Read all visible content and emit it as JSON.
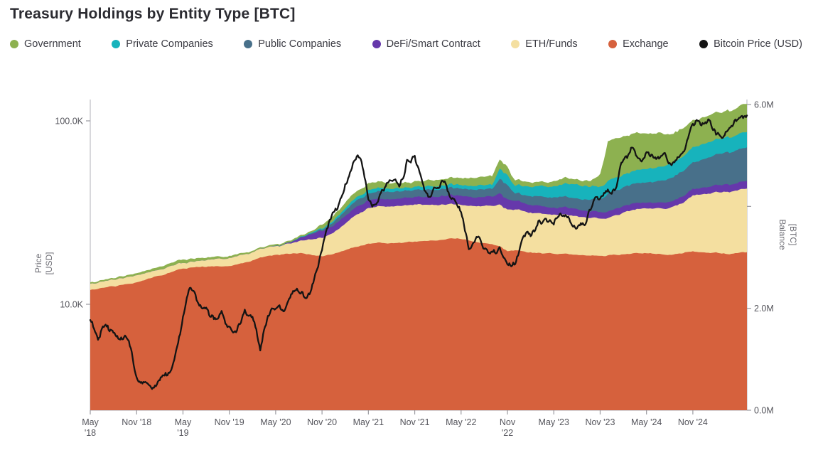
{
  "header": {
    "title": "Treasury Holdings by Entity Type [BTC]"
  },
  "legend": [
    {
      "label": "Government",
      "color": "#8db150",
      "icon": "dot"
    },
    {
      "label": "Private Companies",
      "color": "#17b3bc",
      "icon": "dot"
    },
    {
      "label": "Public Companies",
      "color": "#48708a",
      "icon": "dot"
    },
    {
      "label": "DeFi/Smart Contract",
      "color": "#6638ab",
      "icon": "dot"
    },
    {
      "label": "ETH/Funds",
      "color": "#f4dfa0",
      "icon": "dot"
    },
    {
      "label": "Exchange",
      "color": "#d6613d",
      "icon": "dot"
    },
    {
      "label": "Bitcoin Price (USD)",
      "color": "#141414",
      "icon": "dot"
    }
  ],
  "chart_data": {
    "type": "area",
    "subtype": "stacked-area-with-price-line",
    "x_start_month": "2018-05",
    "x_end_month": "2025-06",
    "x_tick_months": [
      0,
      6,
      12,
      18,
      24,
      30,
      36,
      42,
      48,
      54,
      60,
      66,
      72,
      78
    ],
    "x_tick_labels": [
      [
        "May",
        "'18"
      ],
      [
        "Nov '18"
      ],
      [
        "May",
        "'19"
      ],
      [
        "Nov '19"
      ],
      [
        "May '20"
      ],
      [
        "Nov '20"
      ],
      [
        "May '21"
      ],
      [
        "Nov '21"
      ],
      [
        "May '22"
      ],
      [
        "Nov",
        "'22"
      ],
      [
        "May '23"
      ],
      [
        "Nov '23"
      ],
      [
        "May '24"
      ],
      [
        "Nov '24"
      ]
    ],
    "left_axis": {
      "label_lines": [
        "Price",
        "[USD]"
      ],
      "scale": "log",
      "unit": "USD",
      "ticks": [
        {
          "value": 10000,
          "label": "10.0K"
        },
        {
          "value": 100000,
          "label": "100.0K"
        }
      ],
      "range": [
        2600,
        133000
      ]
    },
    "right_axis": {
      "label_lines": [
        "Balance",
        "[BTC]"
      ],
      "scale": "linear",
      "unit": "M BTC",
      "ticks": [
        {
          "value": 0,
          "label": "0.0M"
        },
        {
          "value": 2,
          "label": "2.0M"
        },
        {
          "value": 4,
          "label": ""
        },
        {
          "value": 6,
          "label": "6.0M"
        }
      ],
      "range": [
        0,
        6.13
      ]
    },
    "grid": false,
    "legend_position": "top",
    "series_unit": "M BTC",
    "series": [
      {
        "name": "Exchange",
        "color": "#d6613d",
        "values": [
          2.36,
          2.38,
          2.41,
          2.43,
          2.46,
          2.48,
          2.51,
          2.55,
          2.6,
          2.64,
          2.69,
          2.74,
          2.78,
          2.8,
          2.81,
          2.81,
          2.82,
          2.82,
          2.83,
          2.86,
          2.9,
          2.94,
          3.0,
          3.03,
          3.05,
          3.06,
          3.07,
          3.08,
          3.06,
          3.04,
          3.02,
          3.05,
          3.09,
          3.14,
          3.19,
          3.23,
          3.27,
          3.28,
          3.28,
          3.28,
          3.29,
          3.3,
          3.31,
          3.32,
          3.33,
          3.33,
          3.35,
          3.37,
          3.36,
          3.33,
          3.3,
          3.28,
          3.26,
          3.22,
          3.12,
          3.14,
          3.12,
          3.1,
          3.09,
          3.08,
          3.07,
          3.07,
          3.06,
          3.05,
          3.04,
          3.04,
          3.03,
          3.04,
          3.05,
          3.06,
          3.07,
          3.08,
          3.08,
          3.07,
          3.06,
          3.05,
          3.07,
          3.1,
          3.12,
          3.1,
          3.09,
          3.1,
          3.08,
          3.07,
          3.09,
          3.1
        ]
      },
      {
        "name": "ETH/Funds",
        "color": "#f4dfa0",
        "values": [
          0.12,
          0.12,
          0.13,
          0.13,
          0.13,
          0.14,
          0.14,
          0.13,
          0.13,
          0.12,
          0.12,
          0.11,
          0.11,
          0.12,
          0.12,
          0.13,
          0.14,
          0.15,
          0.16,
          0.16,
          0.16,
          0.16,
          0.17,
          0.17,
          0.17,
          0.18,
          0.2,
          0.24,
          0.28,
          0.32,
          0.36,
          0.4,
          0.45,
          0.52,
          0.6,
          0.65,
          0.7,
          0.71,
          0.72,
          0.72,
          0.72,
          0.72,
          0.73,
          0.71,
          0.7,
          0.69,
          0.68,
          0.67,
          0.67,
          0.68,
          0.7,
          0.73,
          0.75,
          0.82,
          0.82,
          0.8,
          0.79,
          0.78,
          0.78,
          0.77,
          0.77,
          0.77,
          0.76,
          0.76,
          0.75,
          0.74,
          0.73,
          0.73,
          0.78,
          0.82,
          0.85,
          0.87,
          0.88,
          0.89,
          0.9,
          0.92,
          0.95,
          1.0,
          1.1,
          1.13,
          1.16,
          1.19,
          1.21,
          1.22,
          1.24,
          1.25
        ]
      },
      {
        "name": "DeFi/Smart Contract",
        "color": "#6638ab",
        "values": [
          0,
          0,
          0,
          0,
          0,
          0,
          0,
          0,
          0,
          0,
          0,
          0,
          0,
          0,
          0,
          0,
          0,
          0,
          0,
          0,
          0,
          0,
          0,
          0,
          0,
          0,
          0.02,
          0.05,
          0.08,
          0.11,
          0.13,
          0.14,
          0.15,
          0.15,
          0.15,
          0.15,
          0.15,
          0.15,
          0.14,
          0.14,
          0.14,
          0.15,
          0.15,
          0.15,
          0.16,
          0.16,
          0.17,
          0.17,
          0.18,
          0.18,
          0.17,
          0.17,
          0.18,
          0.22,
          0.2,
          0.17,
          0.16,
          0.15,
          0.15,
          0.14,
          0.14,
          0.14,
          0.14,
          0.14,
          0.13,
          0.13,
          0.13,
          0.13,
          0.13,
          0.13,
          0.13,
          0.12,
          0.11,
          0.11,
          0.12,
          0.12,
          0.12,
          0.12,
          0.13,
          0.13,
          0.13,
          0.14,
          0.14,
          0.14,
          0.15,
          0.15
        ]
      },
      {
        "name": "Public Companies",
        "color": "#48708a",
        "values": [
          0,
          0,
          0,
          0,
          0,
          0,
          0,
          0,
          0,
          0,
          0,
          0,
          0,
          0,
          0,
          0,
          0,
          0,
          0,
          0,
          0,
          0,
          0,
          0,
          0.01,
          0.01,
          0.01,
          0.01,
          0.01,
          0.02,
          0.03,
          0.05,
          0.08,
          0.1,
          0.12,
          0.13,
          0.14,
          0.14,
          0.14,
          0.14,
          0.14,
          0.14,
          0.14,
          0.14,
          0.14,
          0.14,
          0.14,
          0.14,
          0.14,
          0.14,
          0.15,
          0.15,
          0.15,
          0.28,
          0.28,
          0.14,
          0.15,
          0.17,
          0.18,
          0.19,
          0.2,
          0.21,
          0.21,
          0.21,
          0.22,
          0.24,
          0.25,
          0.35,
          0.36,
          0.37,
          0.38,
          0.39,
          0.4,
          0.41,
          0.43,
          0.46,
          0.48,
          0.5,
          0.52,
          0.55,
          0.58,
          0.6,
          0.62,
          0.63,
          0.65,
          0.66
        ]
      },
      {
        "name": "Private Companies",
        "color": "#17b3bc",
        "values": [
          0,
          0,
          0,
          0,
          0,
          0,
          0,
          0,
          0,
          0,
          0,
          0,
          0,
          0,
          0,
          0,
          0,
          0,
          0,
          0,
          0,
          0,
          0,
          0,
          0,
          0,
          0,
          0.01,
          0.01,
          0.02,
          0.02,
          0.03,
          0.04,
          0.05,
          0.06,
          0.06,
          0.07,
          0.07,
          0.07,
          0.06,
          0.06,
          0.06,
          0.06,
          0.06,
          0.07,
          0.07,
          0.07,
          0.07,
          0.07,
          0.07,
          0.08,
          0.08,
          0.08,
          0.2,
          0.2,
          0.15,
          0.17,
          0.18,
          0.2,
          0.21,
          0.22,
          0.23,
          0.26,
          0.28,
          0.27,
          0.26,
          0.25,
          0.25,
          0.25,
          0.25,
          0.25,
          0.26,
          0.26,
          0.27,
          0.27,
          0.28,
          0.28,
          0.29,
          0.3,
          0.3,
          0.3,
          0.3,
          0.29,
          0.29,
          0.3,
          0.3
        ]
      },
      {
        "name": "Government",
        "color": "#8db150",
        "values": [
          0.03,
          0.03,
          0.03,
          0.03,
          0.04,
          0.04,
          0.04,
          0.05,
          0.05,
          0.06,
          0.06,
          0.07,
          0.07,
          0.06,
          0.06,
          0.05,
          0.05,
          0.04,
          0.04,
          0.04,
          0.03,
          0.03,
          0.03,
          0.03,
          0.03,
          0.03,
          0.03,
          0.03,
          0.03,
          0.03,
          0.08,
          0.09,
          0.1,
          0.11,
          0.12,
          0.12,
          0.13,
          0.12,
          0.12,
          0.11,
          0.1,
          0.1,
          0.11,
          0.11,
          0.12,
          0.13,
          0.13,
          0.14,
          0.14,
          0.15,
          0.16,
          0.17,
          0.17,
          0.18,
          0.16,
          0.11,
          0.1,
          0.09,
          0.08,
          0.08,
          0.1,
          0.11,
          0.11,
          0.1,
          0.1,
          0.12,
          0.25,
          0.78,
          0.77,
          0.75,
          0.74,
          0.72,
          0.7,
          0.68,
          0.66,
          0.58,
          0.56,
          0.55,
          0.53,
          0.52,
          0.52,
          0.53,
          0.52,
          0.52,
          0.54,
          0.55
        ]
      }
    ],
    "price_series": {
      "name": "Bitcoin Price (USD)",
      "color": "#141414",
      "unit": "USD",
      "values": [
        8200,
        6400,
        7750,
        7000,
        6600,
        6300,
        4000,
        3750,
        3450,
        3850,
        4100,
        5300,
        8550,
        12300,
        10100,
        9600,
        8300,
        9200,
        7550,
        7200,
        9350,
        8550,
        5600,
        8650,
        9450,
        9150,
        11350,
        11650,
        10800,
        13800,
        19700,
        28900,
        33100,
        45100,
        58800,
        62000,
        37300,
        35000,
        41550,
        47150,
        43800,
        61300,
        64500,
        46200,
        38500,
        43200,
        45550,
        37650,
        31800,
        19950,
        23300,
        20050,
        19400,
        20500,
        16500,
        16550,
        23150,
        23500,
        28500,
        29250,
        27200,
        30450,
        29250,
        25950,
        26950,
        34650,
        37700,
        42250,
        42550,
        61200,
        71300,
        62500,
        67500,
        62700,
        64600,
        58950,
        63300,
        70200,
        96400,
        95000,
        102000,
        84000,
        82500,
        94000,
        104000,
        107000
      ]
    }
  }
}
